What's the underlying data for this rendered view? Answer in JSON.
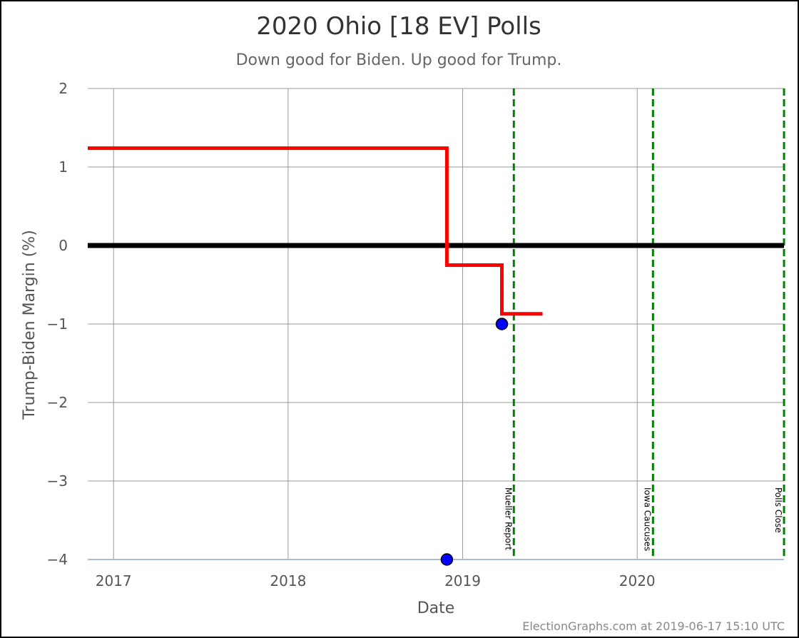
{
  "chart_data": {
    "type": "line",
    "title": "2020 Ohio [18 EV] Polls",
    "subtitle": "Down good for Biden. Up good for Trump.",
    "xlabel": "Date",
    "ylabel": "Trump-Biden Margin (%)",
    "credit": "ElectionGraphs.com at 2019-06-17 15:10 UTC",
    "xlim": [
      "2016-11-08",
      "2020-11-03"
    ],
    "ylim": [
      -4,
      2
    ],
    "x_ticks": [
      {
        "date": "2017-01-01",
        "label": "2017"
      },
      {
        "date": "2018-01-01",
        "label": "2018"
      },
      {
        "date": "2019-01-01",
        "label": "2019"
      },
      {
        "date": "2020-01-01",
        "label": "2020"
      }
    ],
    "y_ticks": [
      {
        "value": 2,
        "label": "2"
      },
      {
        "value": 1,
        "label": "1"
      },
      {
        "value": 0,
        "label": "0"
      },
      {
        "value": -1,
        "label": "−1"
      },
      {
        "value": -2,
        "label": "−2"
      },
      {
        "value": -3,
        "label": "−3"
      },
      {
        "value": -4,
        "label": "−4"
      }
    ],
    "grid": true,
    "series": [
      {
        "name": "",
        "type": "step",
        "color": "#ff0000",
        "points": [
          {
            "x": "2016-11-08",
            "y": 1.24
          },
          {
            "x": "2018-11-29",
            "y": 1.24
          },
          {
            "x": "2018-11-29",
            "y": -0.25
          },
          {
            "x": "2019-03-24",
            "y": -0.25
          },
          {
            "x": "2019-03-24",
            "y": -0.87
          },
          {
            "x": "2019-06-17",
            "y": -0.87
          }
        ]
      }
    ],
    "polls": {
      "color": "#0000ff",
      "points": [
        {
          "x": "2018-11-29",
          "y": -4
        },
        {
          "x": "2019-03-24",
          "y": -1
        }
      ]
    },
    "zero_line": {
      "y": 0,
      "color": "#000000"
    },
    "events": [
      {
        "date": "2019-04-18",
        "label": "Mueller Report",
        "color": "#008000"
      },
      {
        "date": "2020-02-03",
        "label": "Iowa Caucuses",
        "color": "#008000"
      },
      {
        "date": "2020-11-03",
        "label": "Polls Close",
        "color": "#008000"
      }
    ]
  }
}
